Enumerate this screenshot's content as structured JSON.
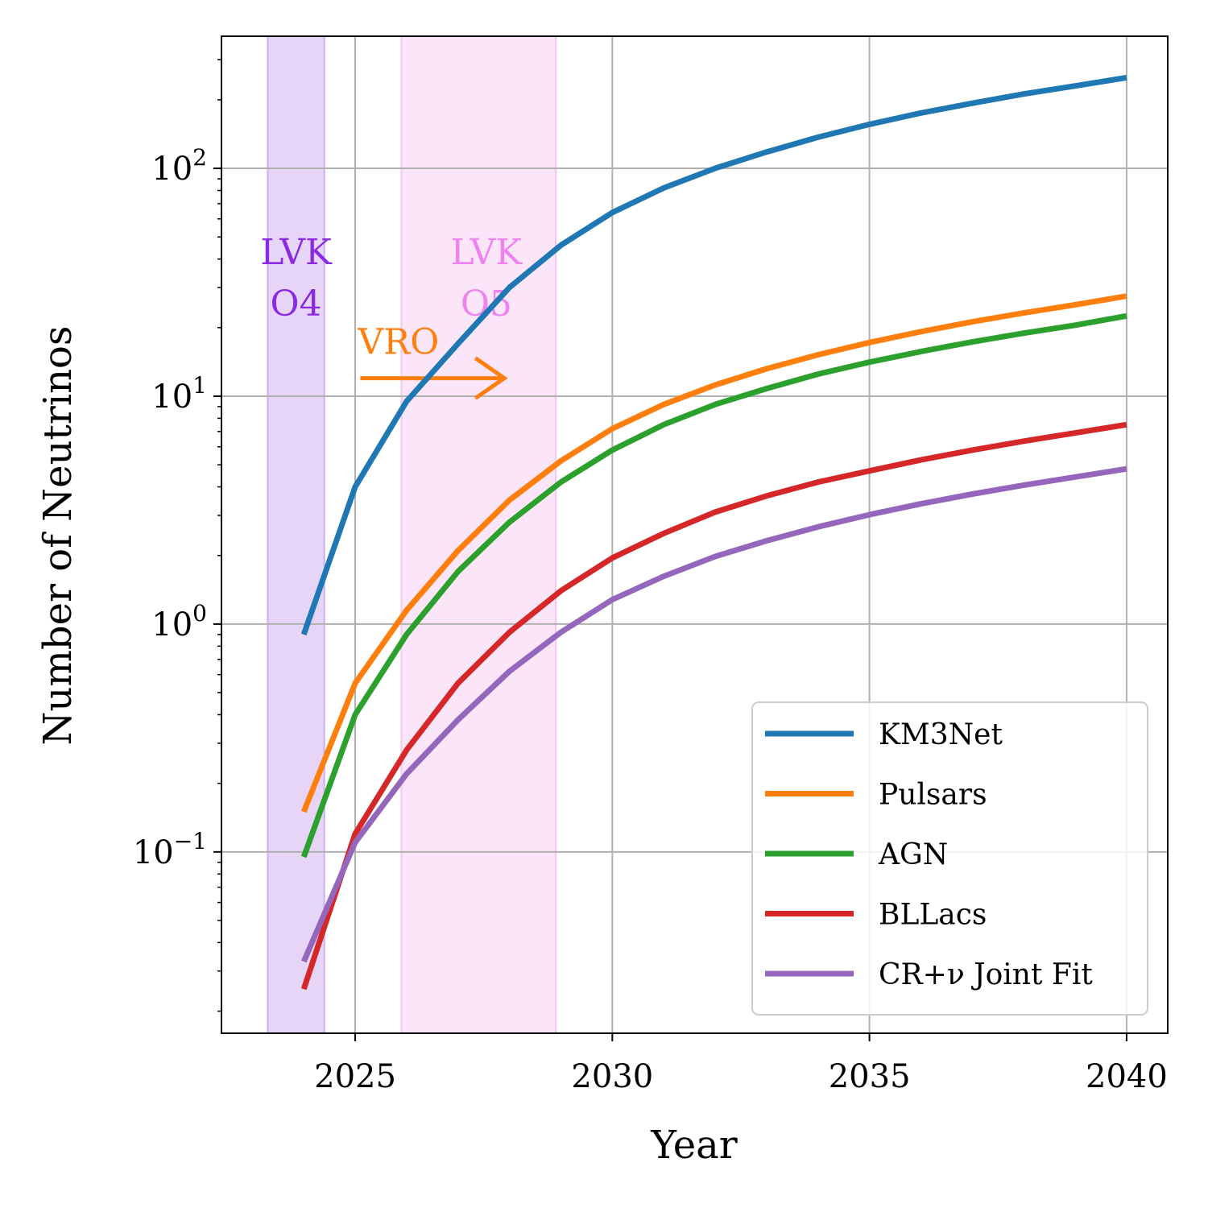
{
  "chart_data": {
    "type": "line",
    "xlabel": "Year",
    "ylabel": "Number of Neutrinos",
    "xlim": [
      2022.4,
      2040.8
    ],
    "ylim": [
      0.016,
      380
    ],
    "yscale": "log",
    "grid": true,
    "legend_position": "lower-right",
    "x_ticks": [
      {
        "value": 2025,
        "label": "2025"
      },
      {
        "value": 2030,
        "label": "2030"
      },
      {
        "value": 2035,
        "label": "2035"
      },
      {
        "value": 2040,
        "label": "2040"
      }
    ],
    "y_ticks": [
      {
        "value": 0.1,
        "base": "10",
        "exp": "−1"
      },
      {
        "value": 1,
        "base": "10",
        "exp": "0"
      },
      {
        "value": 10,
        "base": "10",
        "exp": "1"
      },
      {
        "value": 100,
        "base": "10",
        "exp": "2"
      }
    ],
    "bands": [
      {
        "x0": 2023.3,
        "x1": 2024.4,
        "color": "#e6d5f7",
        "edge": "#c9b0f0",
        "label_lines": [
          "LVK",
          "O4"
        ],
        "label_color": "#8a2be2",
        "label_x": 2023.85
      },
      {
        "x0": 2025.9,
        "x1": 2028.9,
        "color": "#fbe5f9",
        "edge": "#f5c6f0",
        "label_lines": [
          "LVK",
          "O5"
        ],
        "label_color": "#ee82ee",
        "label_x": 2027.55
      }
    ],
    "arrow_annotation": {
      "text": "VRO",
      "color": "#ff7f0e",
      "x_start": 2025.1,
      "x_end": 2027.9,
      "y": 12
    },
    "x": [
      2024,
      2025,
      2026,
      2027,
      2028,
      2029,
      2030,
      2031,
      2032,
      2033,
      2034,
      2035,
      2036,
      2037,
      2038,
      2039,
      2040
    ],
    "series": [
      {
        "name": "KM3Net",
        "color": "#1f77b4",
        "values": [
          0.9,
          4.0,
          9.5,
          17,
          30,
          46,
          64,
          82,
          100,
          118,
          137,
          156,
          175,
          193,
          212,
          230,
          250
        ]
      },
      {
        "name": "Pulsars",
        "color": "#ff7f0e",
        "values": [
          0.15,
          0.55,
          1.15,
          2.1,
          3.5,
          5.2,
          7.2,
          9.2,
          11.2,
          13.2,
          15.2,
          17.2,
          19.2,
          21.2,
          23.2,
          25.2,
          27.5
        ]
      },
      {
        "name": "AGN",
        "color": "#2ca02c",
        "values": [
          0.095,
          0.4,
          0.9,
          1.7,
          2.8,
          4.2,
          5.8,
          7.5,
          9.2,
          10.8,
          12.5,
          14.1,
          15.7,
          17.3,
          18.9,
          20.5,
          22.5
        ]
      },
      {
        "name": "BLLacs",
        "color": "#d62728",
        "values": [
          0.025,
          0.12,
          0.28,
          0.55,
          0.92,
          1.4,
          1.95,
          2.5,
          3.1,
          3.65,
          4.2,
          4.7,
          5.25,
          5.8,
          6.35,
          6.9,
          7.5
        ]
      },
      {
        "name": "CR+ν Joint Fit",
        "color": "#9467bd",
        "values": [
          0.033,
          0.11,
          0.22,
          0.38,
          0.62,
          0.92,
          1.28,
          1.62,
          1.98,
          2.32,
          2.67,
          3.02,
          3.37,
          3.72,
          4.07,
          4.42,
          4.8
        ]
      }
    ]
  }
}
